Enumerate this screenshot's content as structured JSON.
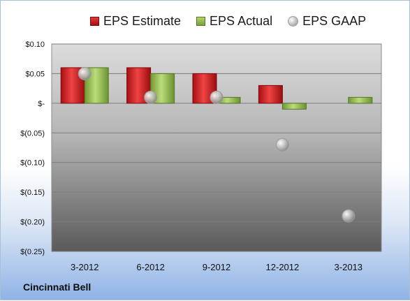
{
  "company": "Cincinnati Bell",
  "legend": {
    "estimate": "EPS Estimate",
    "actual": "EPS Actual",
    "gaap": "EPS GAAP"
  },
  "colors": {
    "estimate": "#c8171b",
    "actual": "#8db84a",
    "gaap": "#b0b0b0"
  },
  "chart_data": {
    "type": "bar",
    "categories": [
      "3-2012",
      "6-2012",
      "9-2012",
      "12-2012",
      "3-2013"
    ],
    "series": [
      {
        "name": "EPS Estimate",
        "values": [
          0.06,
          0.06,
          0.05,
          0.03,
          null
        ]
      },
      {
        "name": "EPS Actual",
        "values": [
          0.06,
          0.05,
          0.01,
          -0.01,
          0.01
        ]
      },
      {
        "name": "EPS GAAP",
        "values": [
          0.05,
          0.01,
          0.01,
          -0.07,
          -0.19
        ]
      }
    ],
    "ylim": [
      -0.25,
      0.1
    ],
    "yticks": [
      0.1,
      0.05,
      0,
      -0.05,
      -0.1,
      -0.15,
      -0.2,
      -0.25
    ],
    "ytick_labels": [
      "$0.10",
      "$0.05",
      "$-",
      "$(0.05)",
      "$(0.10)",
      "$(0.15)",
      "$(0.20)",
      "$(0.25)"
    ],
    "grid": true,
    "legend_position": "top"
  }
}
